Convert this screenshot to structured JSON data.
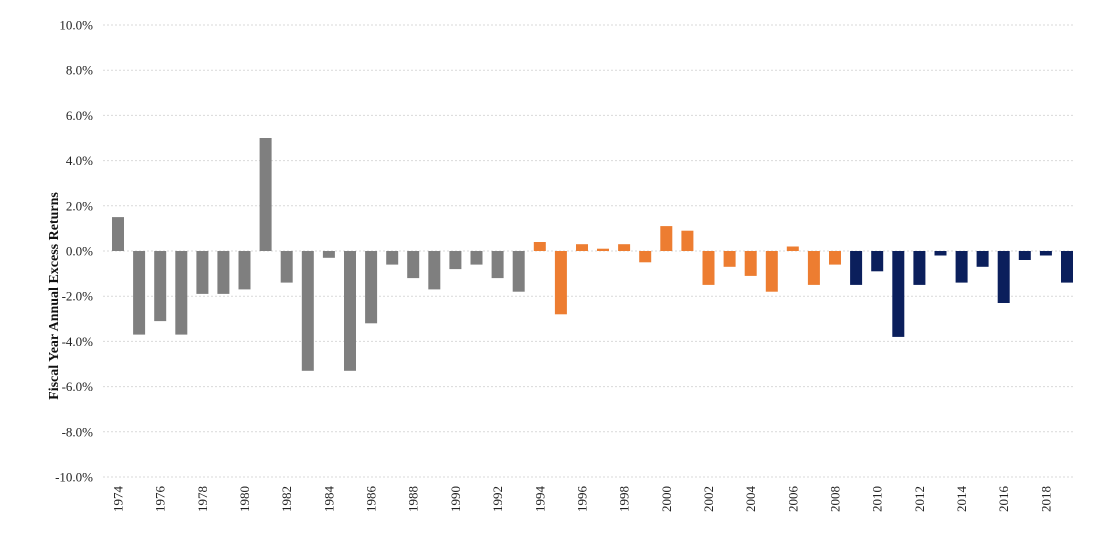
{
  "chart_data": {
    "type": "bar",
    "ylabel": "Fiscal Year Annual  Excess Returns",
    "xlabel": "",
    "title": "",
    "ylim": [
      -10,
      10
    ],
    "y_ticks": [
      10,
      8,
      6,
      4,
      2,
      0,
      -2,
      -4,
      -6,
      -8,
      -10
    ],
    "y_tick_labels": [
      "10.0%",
      "8.0%",
      "6.0%",
      "4.0%",
      "2.0%",
      "0.0%",
      "-2.0%",
      "-4.0%",
      "-6.0%",
      "-8.0%",
      "-10.0%"
    ],
    "grid": true,
    "legend": "none",
    "categories": [
      "1974",
      "1975",
      "1976",
      "1977",
      "1978",
      "1979",
      "1980",
      "1981",
      "1982",
      "1983",
      "1984",
      "1985",
      "1986",
      "1987",
      "1988",
      "1989",
      "1990",
      "1991",
      "1992",
      "1993",
      "1994",
      "1995",
      "1996",
      "1997",
      "1998",
      "1999",
      "2000",
      "2001",
      "2002",
      "2003",
      "2004",
      "2005",
      "2006",
      "2007",
      "2008",
      "2009",
      "2010",
      "2011",
      "2012",
      "2013",
      "2014",
      "2015",
      "2016",
      "2017",
      "2018",
      "2019"
    ],
    "x_tick_labels": [
      "1974",
      "1976",
      "1978",
      "1980",
      "1982",
      "1984",
      "1986",
      "1988",
      "1990",
      "1992",
      "1994",
      "1996",
      "1998",
      "2000",
      "2002",
      "2004",
      "2006",
      "2008",
      "2010",
      "2012",
      "2014",
      "2016",
      "2018"
    ],
    "values": [
      1.5,
      -3.7,
      -3.1,
      -3.7,
      -1.9,
      -1.9,
      -1.7,
      5.0,
      -1.4,
      -5.3,
      -0.3,
      -5.3,
      -3.2,
      -0.6,
      -1.2,
      -1.7,
      -0.8,
      -0.6,
      -1.2,
      -1.8,
      0.4,
      -2.8,
      0.3,
      0.1,
      0.3,
      -0.5,
      1.1,
      0.9,
      -1.5,
      -0.7,
      -1.1,
      -1.8,
      0.2,
      -1.5,
      -0.6,
      -1.5,
      -0.9,
      -3.8,
      -1.5,
      -0.2,
      -1.4,
      -0.7,
      -2.3,
      -0.4,
      -0.2,
      -1.4
    ],
    "colors": {
      "1974-1993": "#7f7f7f",
      "1994-2008": "#ed7d31",
      "2009-2019": "#0b1f5c"
    }
  }
}
